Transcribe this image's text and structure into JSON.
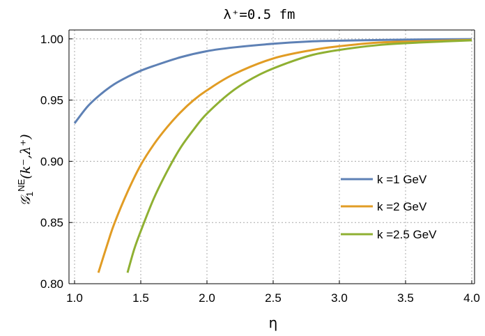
{
  "chart_data": {
    "type": "line",
    "title": "λ⁺=0.5 fm",
    "xlabel": "η",
    "ylabel": {
      "main": "𝒢",
      "sub": "1",
      "sup": "NE",
      "args": "(k⁻,λ⁺)"
    },
    "xlim": [
      1.0,
      4.0
    ],
    "ylim": [
      0.8,
      1.005
    ],
    "x_ticks": [
      1.0,
      1.5,
      2.0,
      2.5,
      3.0,
      3.5,
      4.0
    ],
    "x_tick_labels": [
      "1.0",
      "1.5",
      "2.0",
      "2.5",
      "3.0",
      "3.5",
      "4.0"
    ],
    "y_ticks": [
      0.8,
      0.85,
      0.9,
      0.95,
      1.0
    ],
    "y_tick_labels": [
      "0.80",
      "0.85",
      "0.90",
      "0.95",
      "1.00"
    ],
    "grid": true,
    "legend_position": "right",
    "series": [
      {
        "name": "k =1 GeV",
        "color": "#5e81b5",
        "x": [
          1.0,
          1.1,
          1.2,
          1.3,
          1.4,
          1.5,
          1.6,
          1.8,
          2.0,
          2.2,
          2.5,
          2.8,
          3.0,
          3.3,
          3.6,
          4.0
        ],
        "y": [
          0.931,
          0.945,
          0.955,
          0.963,
          0.969,
          0.974,
          0.978,
          0.985,
          0.99,
          0.993,
          0.996,
          0.998,
          0.9985,
          0.9991,
          0.9995,
          0.9998
        ]
      },
      {
        "name": "k =2 GeV",
        "color": "#e19c24",
        "x": [
          1.18,
          1.25,
          1.3,
          1.4,
          1.5,
          1.6,
          1.7,
          1.8,
          1.9,
          2.0,
          2.2,
          2.5,
          2.8,
          3.0,
          3.3,
          3.6,
          4.0
        ],
        "y": [
          0.809,
          0.833,
          0.849,
          0.875,
          0.897,
          0.914,
          0.928,
          0.94,
          0.95,
          0.958,
          0.971,
          0.984,
          0.991,
          0.994,
          0.997,
          0.998,
          0.9992
        ]
      },
      {
        "name": "k =2.5 GeV",
        "color": "#8fb032",
        "x": [
          1.4,
          1.45,
          1.5,
          1.6,
          1.7,
          1.8,
          1.9,
          2.0,
          2.2,
          2.4,
          2.6,
          2.8,
          3.0,
          3.3,
          3.6,
          4.0
        ],
        "y": [
          0.809,
          0.828,
          0.843,
          0.87,
          0.892,
          0.911,
          0.926,
          0.939,
          0.958,
          0.971,
          0.98,
          0.987,
          0.991,
          0.995,
          0.997,
          0.9988
        ]
      }
    ]
  }
}
